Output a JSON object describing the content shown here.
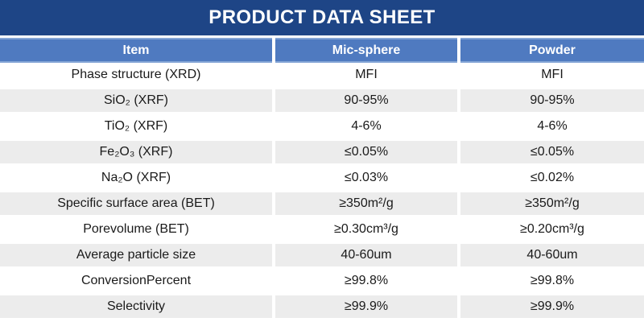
{
  "title_bar": {
    "title": "PRODUCT DATA SHEET",
    "background_color": "#1E4586",
    "text_color": "#FFFFFF"
  },
  "table": {
    "columns": [
      "Item",
      "Mic-sphere",
      "Powder"
    ],
    "header_background_color": "#4F7AC0",
    "header_edge_color": "#84A5D6",
    "alt_row_background_color": "#ECECEC",
    "rows": [
      {
        "item": "Phase structure (XRD)",
        "mic_sphere": "MFI",
        "powder": "MFI"
      },
      {
        "item": "SiO₂ (XRF)",
        "mic_sphere": "90-95%",
        "powder": "90-95%"
      },
      {
        "item": "TiO₂ (XRF)",
        "mic_sphere": "4-6%",
        "powder": "4-6%"
      },
      {
        "item": "Fe₂O₃ (XRF)",
        "mic_sphere": "≤0.05%",
        "powder": "≤0.05%"
      },
      {
        "item": "Na₂O (XRF)",
        "mic_sphere": "≤0.03%",
        "powder": "≤0.02%"
      },
      {
        "item": "Specific surface area (BET)",
        "mic_sphere": "≥350m²/g",
        "powder": "≥350m²/g"
      },
      {
        "item": "Porevolume (BET)",
        "mic_sphere": "≥0.30cm³/g",
        "powder": "≥0.20cm³/g"
      },
      {
        "item": "Average particle size",
        "mic_sphere": "40-60um",
        "powder": "40-60um"
      },
      {
        "item": "ConversionPercent",
        "mic_sphere": "≥99.8%",
        "powder": "≥99.8%"
      },
      {
        "item": "Selectivity",
        "mic_sphere": "≥99.9%",
        "powder": "≥99.9%"
      }
    ]
  }
}
